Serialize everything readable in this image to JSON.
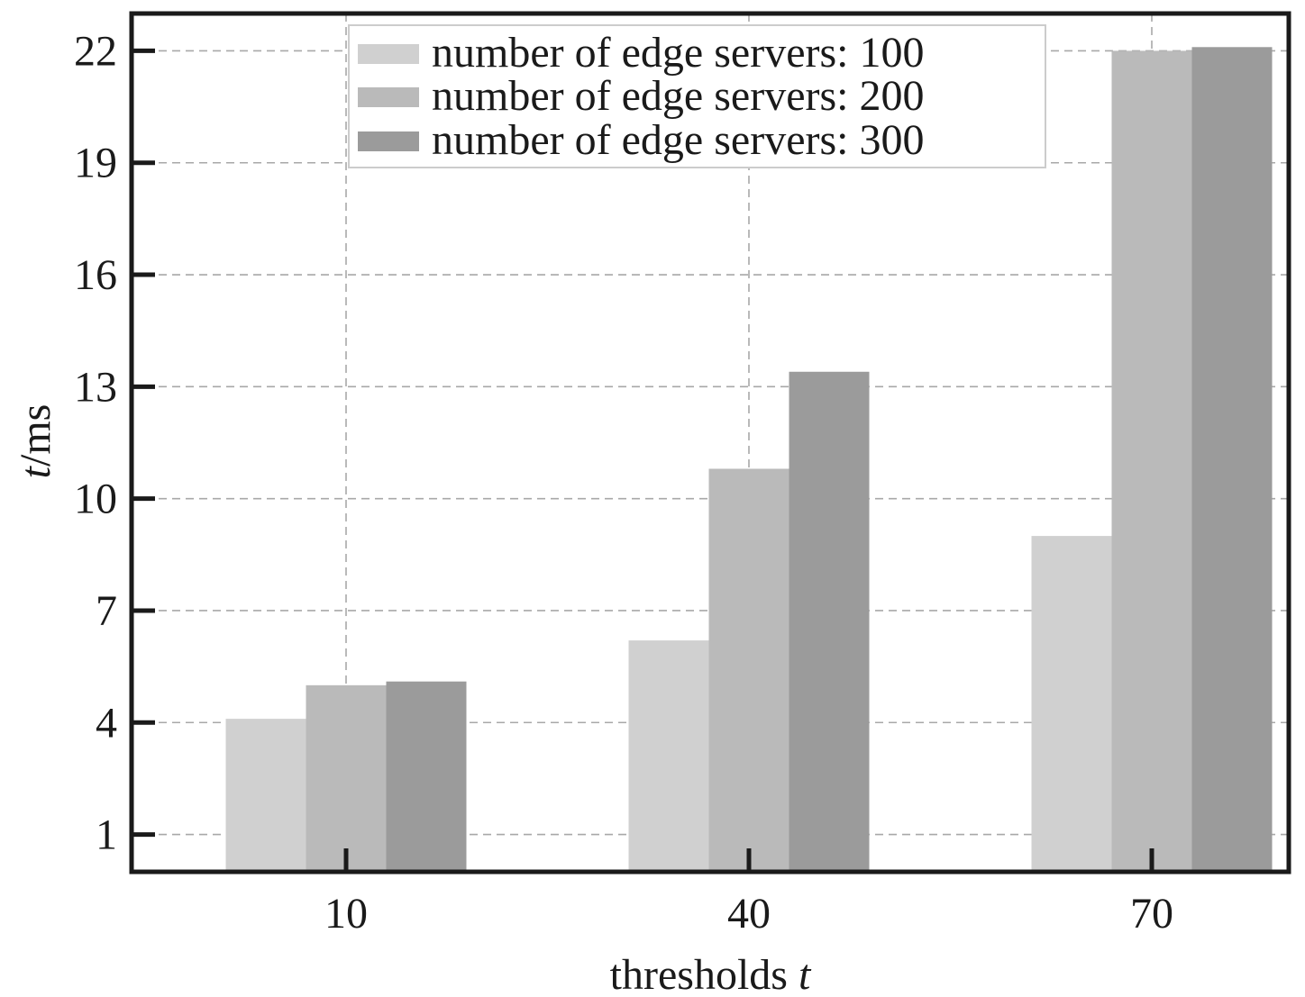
{
  "chart_data": {
    "type": "bar",
    "categories": [
      "10",
      "40",
      "70"
    ],
    "series": [
      {
        "name": "number of edge servers: 100",
        "values": [
          4.1,
          6.2,
          9.0
        ],
        "color": "#d0d0d0"
      },
      {
        "name": "number of edge servers: 200",
        "values": [
          5.0,
          10.8,
          22.0
        ],
        "color": "#bababa"
      },
      {
        "name": "number of edge servers: 300",
        "values": [
          5.1,
          13.4,
          22.1
        ],
        "color": "#9b9b9b"
      }
    ],
    "xlabel": {
      "main": "thresholds ",
      "italic": "t"
    },
    "ylabel": {
      "italic": "t",
      "main": "/ms"
    },
    "yticks": [
      1,
      4,
      7,
      10,
      13,
      16,
      19,
      22
    ],
    "ylim": [
      0,
      23
    ],
    "grid": true,
    "legend_position": "top-center"
  }
}
